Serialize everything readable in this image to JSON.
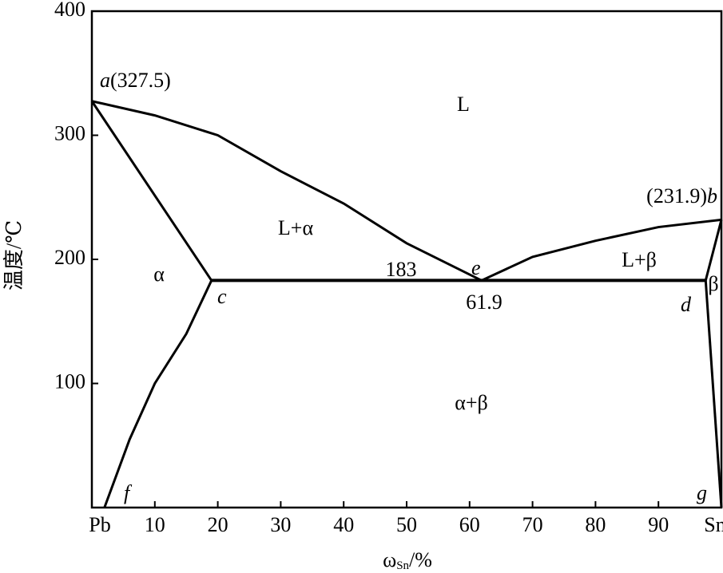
{
  "chart_data": {
    "type": "line",
    "x_label": {
      "symbol": "ω",
      "sub": "Sn",
      "unit": "/%"
    },
    "y_label": "温度/℃",
    "xlim": [
      0,
      100
    ],
    "ylim": [
      0,
      400
    ],
    "xticks": [
      {
        "value": 0,
        "label": "Pb"
      },
      10,
      20,
      30,
      40,
      50,
      60,
      70,
      80,
      90,
      {
        "value": 100,
        "label": "Sn"
      }
    ],
    "yticks": [
      100,
      200,
      300,
      400
    ],
    "color": "#000000",
    "series": [
      {
        "x": [
          0,
          10,
          20,
          30,
          40,
          50,
          61.9
        ],
        "values": [
          327.5,
          316,
          300,
          271,
          245,
          213,
          183
        ]
      },
      {
        "x": [
          0,
          19
        ],
        "values": [
          327.5,
          183
        ]
      },
      {
        "x": [
          19,
          15,
          10,
          6,
          2
        ],
        "values": [
          183,
          140,
          100,
          55,
          0
        ]
      },
      {
        "x": [
          19,
          97.5
        ],
        "values": [
          183,
          183
        ]
      },
      {
        "x": [
          61.9,
          70,
          80,
          90,
          100
        ],
        "values": [
          183,
          202,
          215,
          226,
          231.9
        ]
      },
      {
        "x": [
          100,
          97.5
        ],
        "values": [
          231.9,
          183
        ]
      },
      {
        "x": [
          97.5,
          100
        ],
        "values": [
          183,
          0
        ]
      }
    ],
    "annotations": {
      "a": {
        "letter": "a",
        "label": "(327.5)"
      },
      "b": {
        "letter": "b",
        "label": "(231.9)"
      },
      "c": "c",
      "d": "d",
      "e": "e",
      "f": "f",
      "g": "g",
      "regions": [
        "L",
        "L+α",
        "α",
        "α+β",
        "L+β",
        "β"
      ],
      "eutectic_temp": "183",
      "eutectic_comp": "61.9"
    }
  }
}
